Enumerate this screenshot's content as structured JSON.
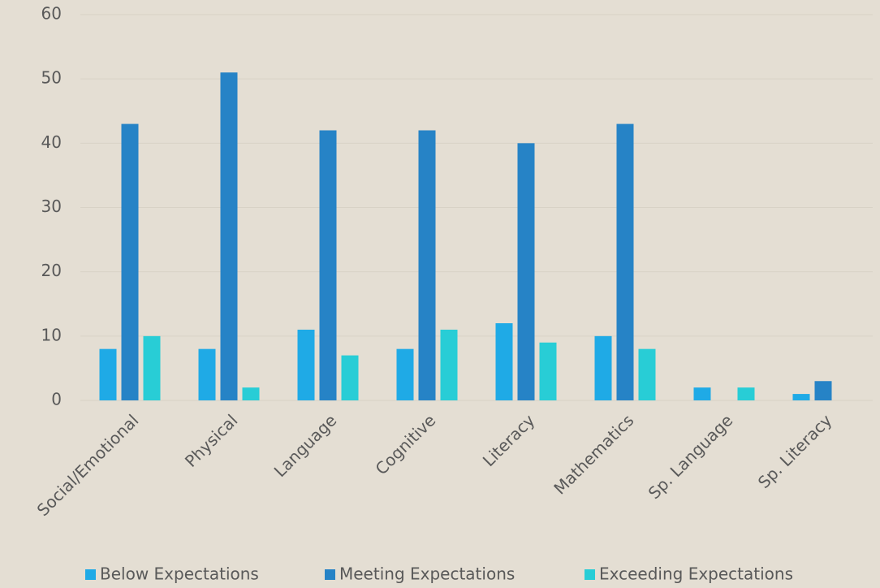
{
  "chart_data": {
    "type": "bar",
    "categories": [
      "Social/Emotional",
      "Physical",
      "Language",
      "Cognitive",
      "Literacy",
      "Mathematics",
      "Sp. Language",
      "Sp. Literacy"
    ],
    "series": [
      {
        "name": "Below Expectations",
        "color": "#1faae6",
        "values": [
          8,
          8,
          11,
          8,
          12,
          10,
          2,
          1
        ]
      },
      {
        "name": "Meeting Expectations",
        "color": "#2683c6",
        "values": [
          43,
          51,
          42,
          42,
          40,
          43,
          0,
          3
        ]
      },
      {
        "name": "Exceeding Expectations",
        "color": "#28cdd6",
        "values": [
          10,
          2,
          7,
          11,
          9,
          8,
          2,
          0
        ]
      }
    ],
    "ylim": [
      0,
      60
    ],
    "yticks": [
      0,
      10,
      20,
      30,
      40,
      50,
      60
    ],
    "grid": true,
    "legend": "bottom"
  }
}
